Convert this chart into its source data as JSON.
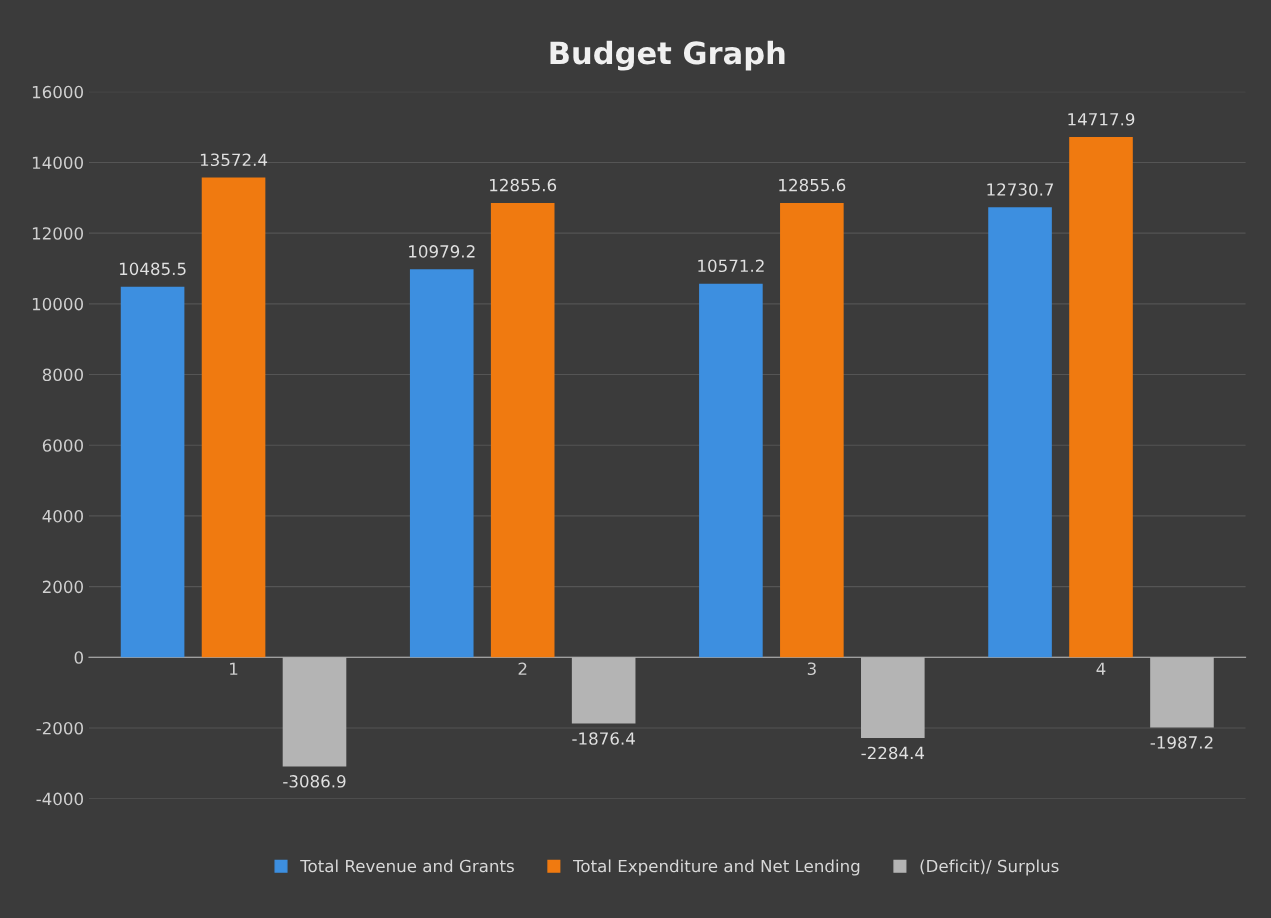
{
  "chart_data": {
    "type": "bar",
    "title": "Budget Graph",
    "categories": [
      "1",
      "2",
      "3",
      "4"
    ],
    "series": [
      {
        "name": "Total Revenue and Grants",
        "color": "#3d8fe0",
        "values": [
          10485.5,
          10979.2,
          10571.2,
          12730.7
        ]
      },
      {
        "name": "Total Expenditure and Net Lending",
        "color": "#f07a10",
        "values": [
          13572.4,
          12855.6,
          12855.6,
          14717.9
        ]
      },
      {
        "name": "(Deficit)/ Surplus",
        "color": "#b4b4b4",
        "values": [
          -3086.9,
          -1876.4,
          -2284.4,
          -1987.2
        ]
      }
    ],
    "ylim": [
      -4000,
      16000
    ],
    "yticks": [
      -4000,
      -2000,
      0,
      2000,
      4000,
      6000,
      8000,
      10000,
      12000,
      14000,
      16000
    ],
    "grid": "y",
    "legend": "bottom",
    "data_labels": true
  }
}
